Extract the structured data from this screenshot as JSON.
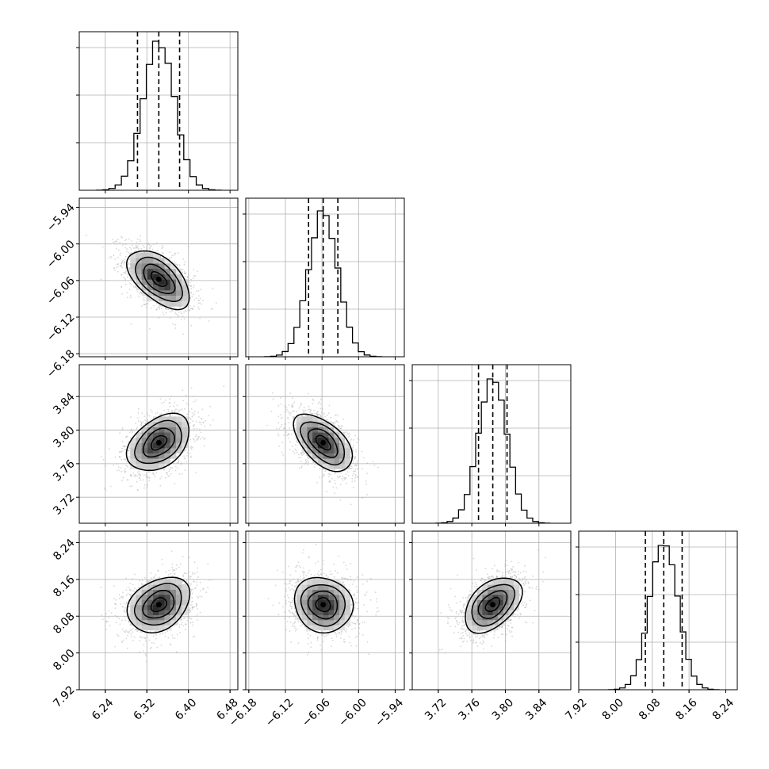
{
  "chart_data": {
    "type": "corner",
    "params": [
      {
        "ticks": [
          6.24,
          6.32,
          6.4,
          6.48
        ],
        "tick_labels": [
          "6.24",
          "6.32",
          "6.40",
          "6.48"
        ],
        "range": [
          6.19,
          6.495
        ],
        "mean": 6.343,
        "std": 0.03,
        "quantiles": [
          6.302,
          6.343,
          6.383
        ],
        "hist_peak": 0.94
      },
      {
        "ticks": [
          -6.18,
          -6.12,
          -6.06,
          -6.0,
          -5.94
        ],
        "tick_labels": [
          "−6.18",
          "−6.12",
          "−6.06",
          "−6.00",
          "−5.94"
        ],
        "range": [
          -6.185,
          -5.925
        ],
        "mean": -6.058,
        "std": 0.024,
        "quantiles": [
          -6.082,
          -6.058,
          -6.034
        ],
        "hist_peak": 0.92
      },
      {
        "ticks": [
          3.72,
          3.76,
          3.8,
          3.84
        ],
        "tick_labels": [
          "3.72",
          "3.76",
          "3.80",
          "3.84"
        ],
        "range": [
          3.689,
          3.878
        ],
        "mean": 3.785,
        "std": 0.017,
        "quantiles": [
          3.768,
          3.785,
          3.802
        ],
        "hist_peak": 0.91
      },
      {
        "ticks": [
          7.92,
          8.0,
          8.08,
          8.16,
          8.24
        ],
        "tick_labels": [
          "7.92",
          "8.00",
          "8.08",
          "8.16",
          "8.24"
        ],
        "range": [
          7.92,
          8.265
        ],
        "mean": 8.105,
        "std": 0.03,
        "quantiles": [
          8.065,
          8.105,
          8.145
        ],
        "hist_peak": 0.91
      }
    ],
    "correlations": [
      {
        "i": 1,
        "j": 0,
        "rho": -0.55
      },
      {
        "i": 2,
        "j": 0,
        "rho": 0.4
      },
      {
        "i": 2,
        "j": 1,
        "rho": -0.55
      },
      {
        "i": 3,
        "j": 0,
        "rho": 0.3
      },
      {
        "i": 3,
        "j": 1,
        "rho": -0.1
      },
      {
        "i": 3,
        "j": 2,
        "rho": 0.45
      }
    ],
    "contour_levels_sigma": [
      0.5,
      1.0,
      1.5,
      2.0
    ],
    "hist_bins": 20,
    "grid": true,
    "quantile_line_style": "dashed",
    "colors": {
      "line": "#000000",
      "points": "#b0b0b0",
      "grid": "#b0b0b0"
    }
  }
}
